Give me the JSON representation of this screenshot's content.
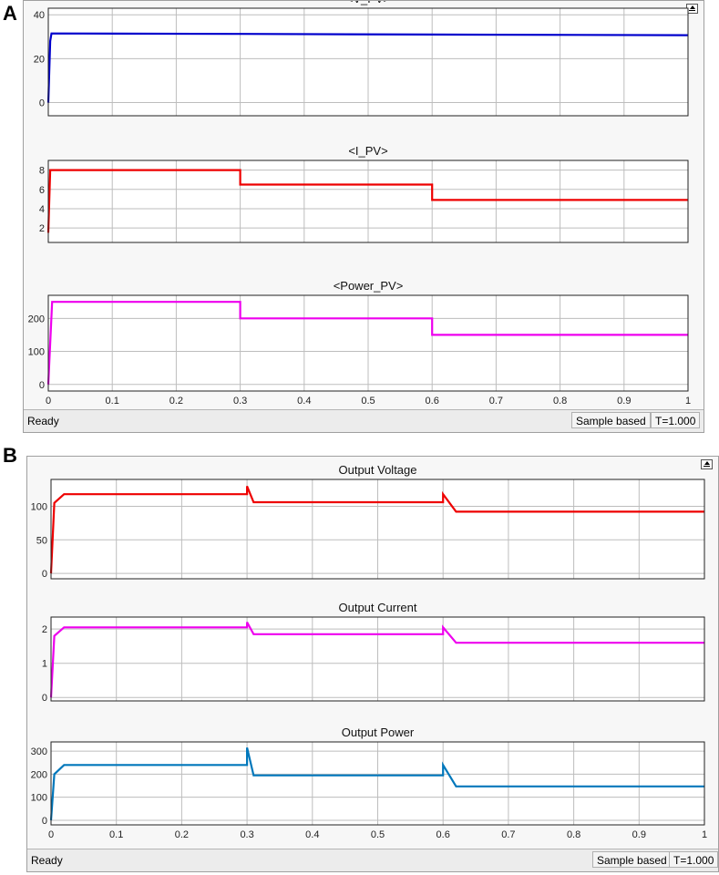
{
  "panels": [
    {
      "label": "A",
      "status": {
        "text": "Ready",
        "mode": "Sample based",
        "time": "T=1.000"
      },
      "x_ticks": [
        "0",
        "0.1",
        "0.2",
        "0.3",
        "0.4",
        "0.5",
        "0.6",
        "0.7",
        "0.8",
        "0.9",
        "1"
      ]
    },
    {
      "label": "B",
      "status": {
        "text": "Ready",
        "mode": "Sample based",
        "time": "T=1.000"
      },
      "x_ticks": [
        "0",
        "0.1",
        "0.2",
        "0.3",
        "0.4",
        "0.5",
        "0.6",
        "0.7",
        "0.8",
        "0.9",
        "1"
      ]
    }
  ],
  "chart_data": [
    {
      "panel": "A",
      "type": "line",
      "title": "<V_PV>",
      "color": "#0000cc",
      "xlim": [
        0,
        1
      ],
      "ylim": [
        -6,
        43
      ],
      "yticks": [
        0,
        20,
        40
      ],
      "show_x_ticks": false,
      "x": [
        0,
        0.003,
        0.005,
        0.3,
        0.6,
        1.0
      ],
      "values": [
        0,
        28,
        31.5,
        31.3,
        31.0,
        30.7
      ]
    },
    {
      "panel": "A",
      "type": "line",
      "title": "<I_PV>",
      "color": "#ee0000",
      "xlim": [
        0,
        1
      ],
      "ylim": [
        0.5,
        9
      ],
      "yticks": [
        2,
        4,
        6,
        8
      ],
      "show_x_ticks": false,
      "x": [
        0,
        0.003,
        0.3,
        0.3,
        0.6,
        0.6,
        1.0
      ],
      "values": [
        1.5,
        8,
        8,
        6.5,
        6.5,
        4.9,
        4.9
      ]
    },
    {
      "panel": "A",
      "type": "line",
      "title": "<Power_PV>",
      "color": "#ee00ee",
      "xlim": [
        0,
        1
      ],
      "ylim": [
        -20,
        270
      ],
      "yticks": [
        0,
        100,
        200
      ],
      "show_x_ticks": true,
      "x": [
        0,
        0.006,
        0.3,
        0.3,
        0.6,
        0.6,
        1.0
      ],
      "values": [
        0,
        250,
        250,
        200,
        200,
        150,
        150
      ]
    },
    {
      "panel": "B",
      "type": "line",
      "title": "Output Voltage",
      "color": "#ee0000",
      "xlim": [
        0,
        1
      ],
      "ylim": [
        -8,
        140
      ],
      "yticks": [
        0,
        50,
        100
      ],
      "show_x_ticks": false,
      "x": [
        0,
        0.005,
        0.02,
        0.3,
        0.3,
        0.31,
        0.6,
        0.6,
        0.62,
        1.0
      ],
      "values": [
        0,
        105,
        118,
        118,
        130,
        106,
        106,
        118,
        92,
        92
      ]
    },
    {
      "panel": "B",
      "type": "line",
      "title": "Output Current",
      "color": "#ee00ee",
      "xlim": [
        0,
        1
      ],
      "ylim": [
        -0.1,
        2.35
      ],
      "yticks": [
        0,
        1,
        2
      ],
      "show_x_ticks": false,
      "x": [
        0,
        0.005,
        0.02,
        0.3,
        0.3,
        0.31,
        0.6,
        0.6,
        0.62,
        1.0
      ],
      "values": [
        0,
        1.8,
        2.05,
        2.05,
        2.2,
        1.85,
        1.85,
        2.05,
        1.6,
        1.6
      ]
    },
    {
      "panel": "B",
      "type": "line",
      "title": "Output Power",
      "color": "#0077bb",
      "xlim": [
        0,
        1
      ],
      "ylim": [
        -20,
        340
      ],
      "yticks": [
        0,
        100,
        200,
        300
      ],
      "show_x_ticks": true,
      "x": [
        0,
        0.005,
        0.02,
        0.3,
        0.3,
        0.31,
        0.6,
        0.6,
        0.62,
        1.0
      ],
      "values": [
        0,
        200,
        240,
        240,
        315,
        195,
        195,
        240,
        147,
        147
      ]
    }
  ]
}
